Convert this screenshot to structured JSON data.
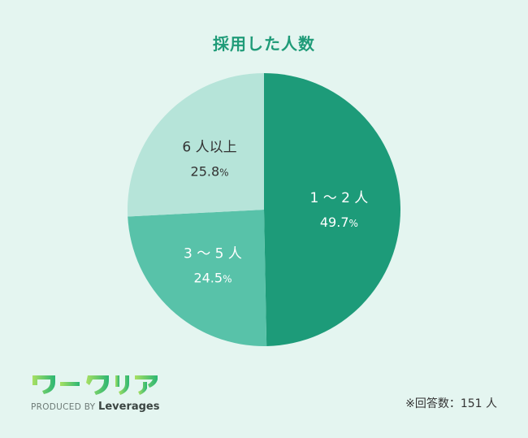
{
  "title": "採用した人数",
  "chart_data": {
    "type": "pie",
    "title": "採用した人数",
    "slices": [
      {
        "label": "1 ～ 2 人",
        "value": 49.7,
        "value_text": "49.7",
        "color": "#1d9b79",
        "text_color": "#ffffff"
      },
      {
        "label": "3 ～ 5 人",
        "value": 24.5,
        "value_text": "24.5",
        "color": "#58c2a9",
        "text_color": "#ffffff"
      },
      {
        "label": "6 人以上",
        "value": 25.8,
        "value_text": "25.8",
        "color": "#b6e4d9",
        "text_color": "#333333"
      }
    ],
    "unit": "%"
  },
  "logo": {
    "produced_by": "PRODUCED BY",
    "brand": "Leverages",
    "mark_text": "ワークリア",
    "mark_colors": [
      "#a8e063",
      "#2bb673"
    ]
  },
  "footnote": "※回答数：151 人"
}
